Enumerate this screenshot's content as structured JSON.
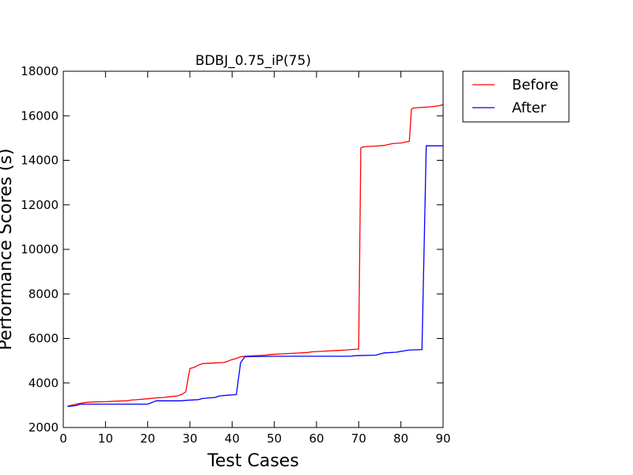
{
  "chart_data": {
    "type": "line",
    "title": "BDBJ_0.75_iP(75)",
    "xlabel": "Test Cases",
    "ylabel": "Performance Scores (s)",
    "xlim": [
      0,
      90
    ],
    "ylim": [
      2000,
      18000
    ],
    "xticks": [
      0,
      10,
      20,
      30,
      40,
      50,
      60,
      70,
      80,
      90
    ],
    "yticks": [
      2000,
      4000,
      6000,
      8000,
      10000,
      12000,
      14000,
      16000,
      18000
    ],
    "grid": false,
    "legend_position": "outside-top-right",
    "series": [
      {
        "name": "Before",
        "color": "#ff0000",
        "x": [
          1,
          3,
          5,
          7,
          10,
          12,
          15,
          16,
          18,
          20,
          22,
          24,
          25,
          27,
          28,
          29,
          30,
          31,
          32,
          33,
          35,
          38,
          39,
          40,
          41,
          42,
          43,
          45,
          48,
          49,
          52,
          55,
          58,
          59,
          62,
          65,
          67,
          68,
          70,
          70.5,
          71,
          72,
          74,
          76,
          78,
          80,
          82,
          82.5,
          83,
          85,
          87,
          89,
          90
        ],
        "y": [
          2950,
          3050,
          3120,
          3150,
          3160,
          3180,
          3200,
          3230,
          3260,
          3290,
          3330,
          3350,
          3380,
          3420,
          3480,
          3600,
          4650,
          4700,
          4800,
          4870,
          4890,
          4920,
          4980,
          5050,
          5100,
          5180,
          5200,
          5220,
          5250,
          5280,
          5310,
          5340,
          5370,
          5400,
          5430,
          5460,
          5480,
          5500,
          5520,
          14550,
          14600,
          14620,
          14640,
          14670,
          14750,
          14780,
          14850,
          16300,
          16350,
          16380,
          16400,
          16450,
          16500
        ]
      },
      {
        "name": "After",
        "color": "#0000ff",
        "x": [
          1,
          3,
          4,
          10,
          20,
          22,
          28,
          29,
          32,
          33,
          36,
          37,
          39,
          41,
          42,
          43,
          50,
          60,
          68,
          69,
          70,
          74,
          76,
          79,
          80,
          81,
          82,
          85,
          86,
          90
        ],
        "y": [
          2950,
          2980,
          3050,
          3050,
          3050,
          3200,
          3200,
          3220,
          3250,
          3300,
          3350,
          3420,
          3450,
          3480,
          4900,
          5180,
          5200,
          5200,
          5200,
          5220,
          5230,
          5250,
          5350,
          5380,
          5420,
          5450,
          5480,
          5500,
          14650,
          14650
        ]
      }
    ]
  }
}
